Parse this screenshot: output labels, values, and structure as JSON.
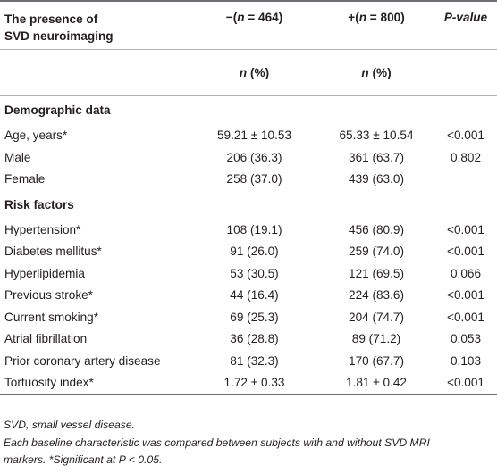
{
  "table": {
    "header": {
      "col1_line1": "The presence of",
      "col1_line2": "SVD neuroimaging",
      "neg_group": "−(n = 464)",
      "pos_group": "+(n = 800)",
      "pvalue": "P-value",
      "unit_neg": "n (%)",
      "unit_pos": "n (%)"
    },
    "sections": [
      {
        "title": "Demographic data",
        "rows": [
          {
            "label": "Age, years*",
            "neg": "59.21 ± 10.53",
            "pos": "65.33 ± 10.54",
            "p": "<0.001"
          },
          {
            "label": "Male",
            "neg": "206 (36.3)",
            "pos": "361 (63.7)",
            "p": "0.802"
          },
          {
            "label": "Female",
            "neg": "258 (37.0)",
            "pos": "439 (63.0)",
            "p": ""
          }
        ]
      },
      {
        "title": "Risk factors",
        "rows": [
          {
            "label": "Hypertension*",
            "neg": "108 (19.1)",
            "pos": "456 (80.9)",
            "p": "<0.001"
          },
          {
            "label": "Diabetes mellitus*",
            "neg": "91 (26.0)",
            "pos": "259 (74.0)",
            "p": "<0.001"
          },
          {
            "label": "Hyperlipidemia",
            "neg": "53 (30.5)",
            "pos": "121 (69.5)",
            "p": "0.066"
          },
          {
            "label": "Previous stroke*",
            "neg": "44 (16.4)",
            "pos": "224 (83.6)",
            "p": "<0.001"
          },
          {
            "label": "Current smoking*",
            "neg": "69 (25.3)",
            "pos": "204 (74.7)",
            "p": "<0.001"
          },
          {
            "label": "Atrial fibrillation",
            "neg": "36 (28.8)",
            "pos": "89 (71.2)",
            "p": "0.053"
          },
          {
            "label": "Prior coronary artery disease",
            "neg": "81 (32.3)",
            "pos": "170 (67.7)",
            "p": "0.103"
          },
          {
            "label": "Tortuosity index*",
            "neg": "1.72 ± 0.33",
            "pos": "1.81 ± 0.42",
            "p": "<0.001"
          }
        ]
      }
    ]
  },
  "footnotes": [
    "SVD, small vessel disease.",
    "Each baseline characteristic was compared between subjects with and without SVD MRI",
    "markers. *Significant at P < 0.05."
  ]
}
